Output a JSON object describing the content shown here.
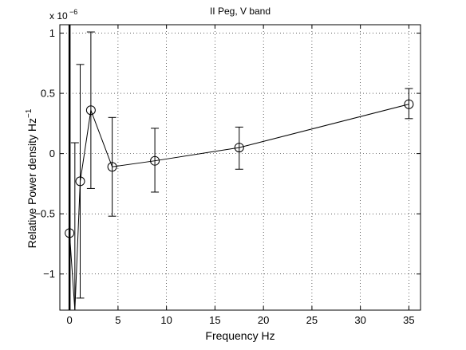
{
  "chart_data": {
    "type": "scatter",
    "title": "II Peg,  V band",
    "xlabel": "Frequency  Hz",
    "ylabel_main": "Relative Power density  Hz",
    "ylabel_sup": "−1",
    "y_multiplier_base": "x 10",
    "y_multiplier_exp": "−6",
    "xlim": [
      -1,
      36.2
    ],
    "ylim": [
      -1.3,
      1.07
    ],
    "xticks": [
      0,
      5,
      10,
      15,
      20,
      25,
      30,
      35
    ],
    "xtick_labels": [
      "0",
      "5",
      "10",
      "15",
      "20",
      "25",
      "30",
      "35"
    ],
    "yticks": [
      -1,
      -0.5,
      0,
      0.5,
      1
    ],
    "ytick_labels": [
      "−1",
      "−0.5",
      "0",
      "0.5",
      "1"
    ],
    "grid": true,
    "series": [
      {
        "marker": "open-circle",
        "line": "solid",
        "color": "#000000",
        "points": [
          {
            "x": 0.0,
            "y": -0.66,
            "err_lo": null,
            "err_hi": null
          },
          {
            "x": 0.55,
            "y": -1.3,
            "err_lo": -1.3,
            "err_hi": 0.09
          },
          {
            "x": 1.1,
            "y": -0.23,
            "err_lo": -1.2,
            "err_hi": 0.74
          },
          {
            "x": 2.2,
            "y": 0.36,
            "err_lo": -0.29,
            "err_hi": 1.01
          },
          {
            "x": 4.4,
            "y": -0.11,
            "err_lo": -0.52,
            "err_hi": 0.3
          },
          {
            "x": 8.8,
            "y": -0.06,
            "err_lo": -0.32,
            "err_hi": 0.21
          },
          {
            "x": 17.5,
            "y": 0.05,
            "err_lo": -0.13,
            "err_hi": 0.22
          },
          {
            "x": 35.0,
            "y": 0.41,
            "err_lo": 0.29,
            "err_hi": 0.54
          }
        ],
        "vertical_line_x": 0.0
      }
    ]
  }
}
